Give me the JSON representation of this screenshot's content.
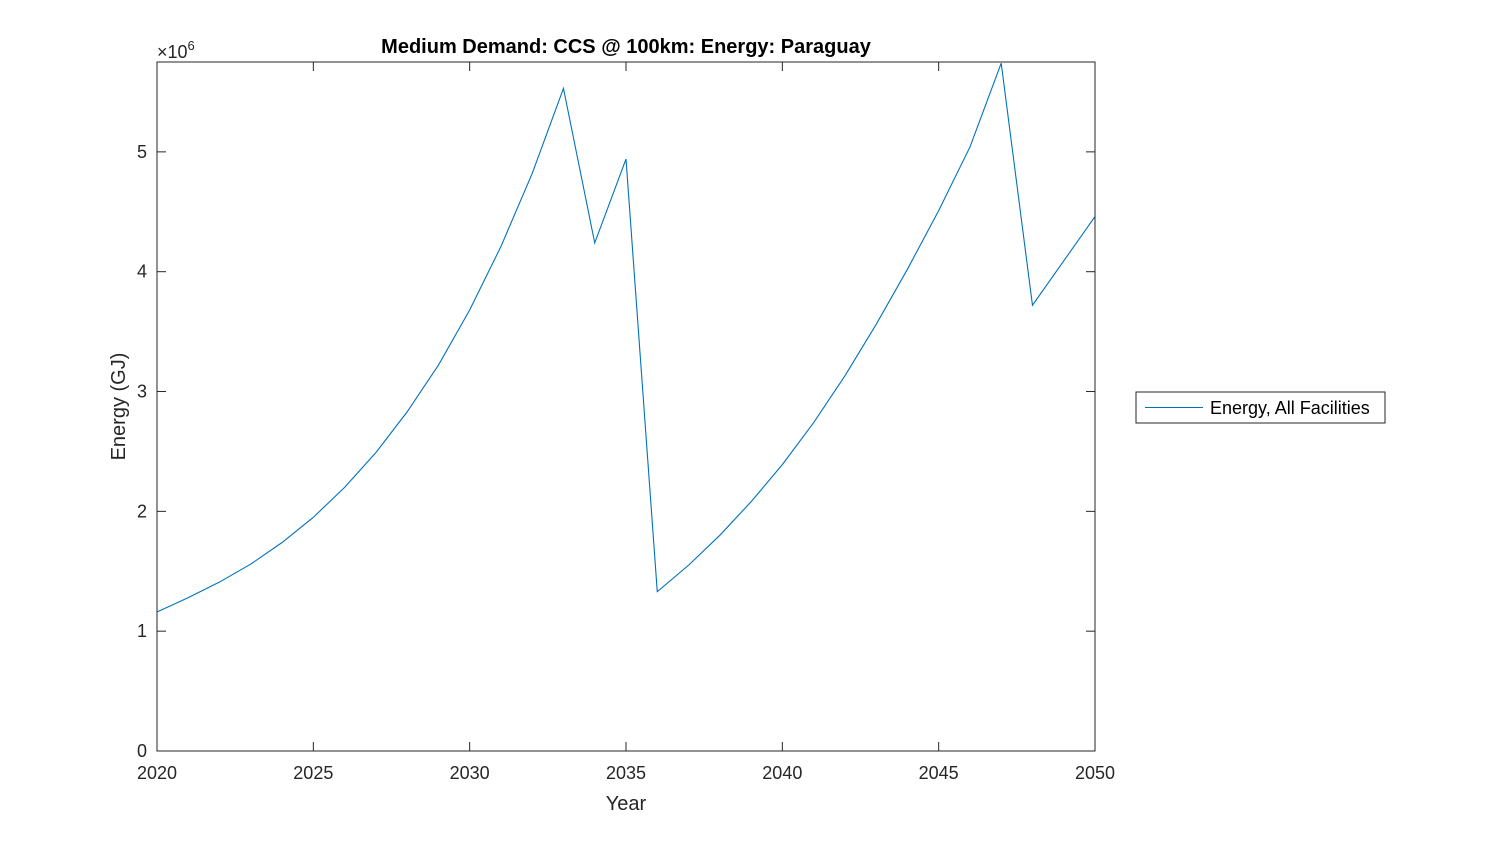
{
  "chart_data": {
    "type": "line",
    "title": "Medium Demand: CCS @ 100km: Energy: Paraguay",
    "xlabel": "Year",
    "ylabel": "Energy (GJ)",
    "y_exponent_label": "×10",
    "y_exponent_power": "6",
    "xlim": [
      2020,
      2050
    ],
    "ylim": [
      0,
      5.75
    ],
    "y_scale_factor": 1000000,
    "xticks": [
      "2020",
      "2025",
      "2030",
      "2035",
      "2040",
      "2045",
      "2050"
    ],
    "yticks": [
      "0",
      "1",
      "2",
      "3",
      "4",
      "5"
    ],
    "legend_position": "outside-right",
    "line_color": "#0072BD",
    "x": [
      2020,
      2021,
      2022,
      2023,
      2024,
      2025,
      2026,
      2027,
      2028,
      2029,
      2030,
      2031,
      2032,
      2033,
      2034,
      2035,
      2036,
      2037,
      2038,
      2039,
      2040,
      2041,
      2042,
      2043,
      2044,
      2045,
      2046,
      2047,
      2048,
      2049,
      2050
    ],
    "series": [
      {
        "name": "Energy, All Facilities",
        "values": [
          1.16,
          1.28,
          1.41,
          1.56,
          1.74,
          1.95,
          2.2,
          2.49,
          2.83,
          3.22,
          3.68,
          4.21,
          4.82,
          5.53,
          4.24,
          4.94,
          1.33,
          1.55,
          1.8,
          2.08,
          2.39,
          2.74,
          3.13,
          3.56,
          4.02,
          4.51,
          5.04,
          5.74,
          3.72,
          4.09,
          4.46
        ]
      }
    ]
  }
}
